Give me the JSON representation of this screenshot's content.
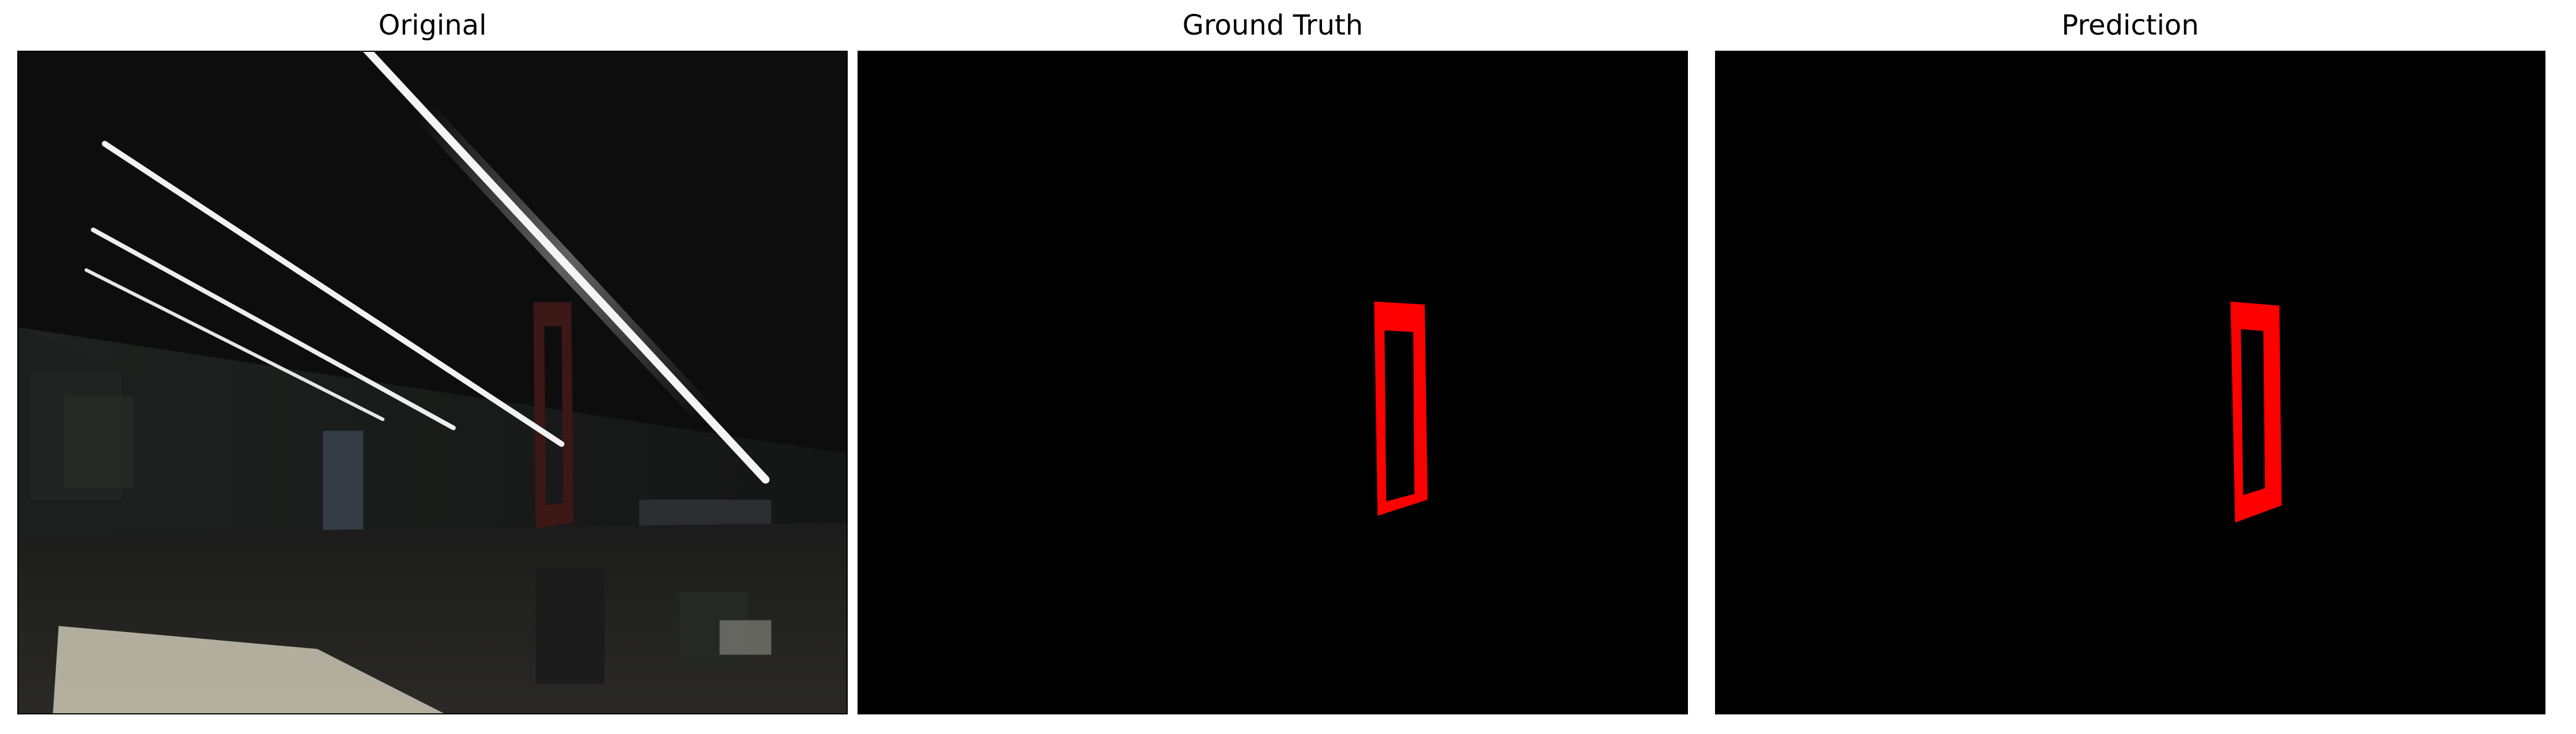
{
  "figure": {
    "panels": [
      {
        "title": "Original",
        "image": "dark-indoor-scene-photo"
      },
      {
        "title": "Ground Truth",
        "image": "red-door-frame-mask"
      },
      {
        "title": "Prediction",
        "image": "red-door-frame-mask"
      }
    ],
    "colors": {
      "background": "#ffffff",
      "mask_background": "#000000",
      "mask_foreground": "#ff0000"
    }
  }
}
